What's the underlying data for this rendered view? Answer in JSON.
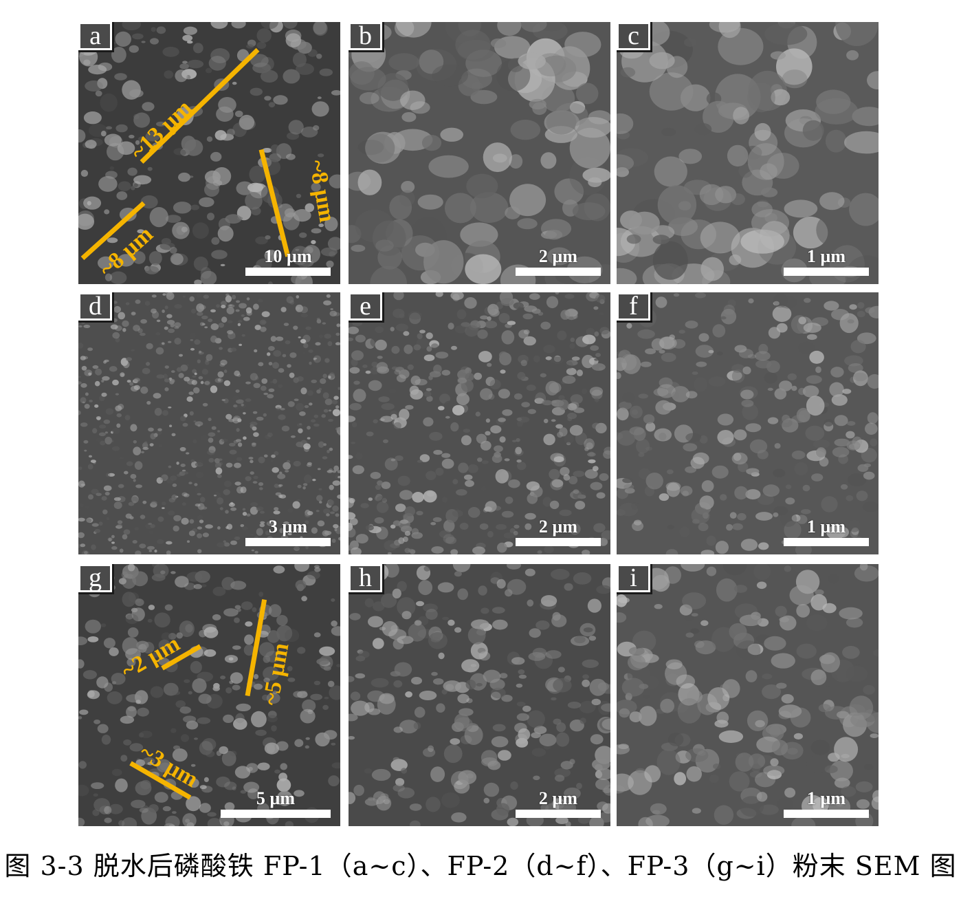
{
  "panels": [
    {
      "id": "a",
      "scale": "10 µm",
      "annotations": [
        "~13 µm",
        "~8 µm",
        "~8 µm"
      ]
    },
    {
      "id": "b",
      "scale": "2 µm"
    },
    {
      "id": "c",
      "scale": "1 µm"
    },
    {
      "id": "d",
      "scale": "3 µm"
    },
    {
      "id": "e",
      "scale": "2 µm"
    },
    {
      "id": "f",
      "scale": "1 µm"
    },
    {
      "id": "g",
      "scale": "5 µm",
      "annotations": [
        "~2 µm",
        "~5 µm",
        "~3 µm"
      ]
    },
    {
      "id": "h",
      "scale": "2 µm"
    },
    {
      "id": "i",
      "scale": "1 µm"
    }
  ],
  "caption": "图 3-3 脱水后磷酸铁 FP-1（a~c）、FP-2（d~f）、FP-3（g~i）粉末 SEM 图",
  "colors": {
    "annotation": "#f5b400",
    "scalebar": "#ffffff"
  }
}
